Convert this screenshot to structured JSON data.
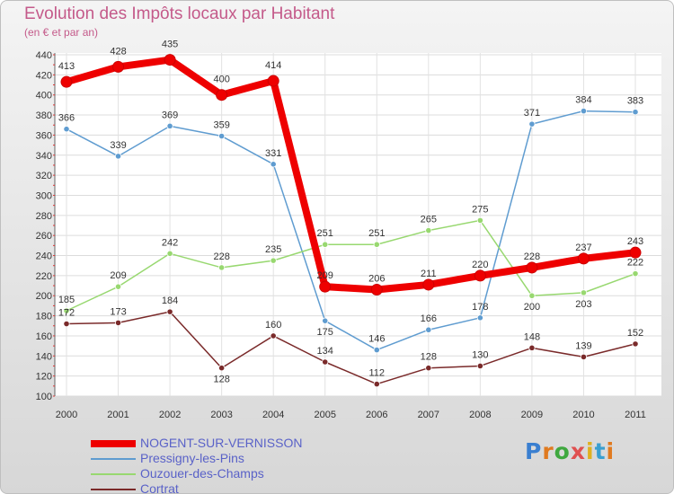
{
  "header": {
    "title": "Evolution des Impôts locaux par Habitant",
    "subtitle": "(en € et par an)"
  },
  "logo": {
    "letters": [
      "P",
      "r",
      "o",
      "x",
      "i",
      "t",
      "i"
    ],
    "colors": [
      "#3a7fd0",
      "#e07a1f",
      "#3fa83f",
      "#e05050",
      "#e0b020",
      "#3a9fd0",
      "#e07a1f"
    ]
  },
  "chart_data": {
    "type": "line",
    "title": "Evolution des Impôts locaux par Habitant",
    "subtitle": "(en € et par an)",
    "x": [
      "2000",
      "2001",
      "2002",
      "2003",
      "2004",
      "2005",
      "2006",
      "2007",
      "2008",
      "2009",
      "2010",
      "2011"
    ],
    "ylim": [
      100,
      440
    ],
    "yticks": [
      100,
      120,
      140,
      160,
      180,
      200,
      220,
      240,
      260,
      280,
      300,
      320,
      340,
      360,
      380,
      400,
      420,
      440
    ],
    "grid": true,
    "legend_position": "bottom-left",
    "series": [
      {
        "name": "NOGENT-SUR-VERNISSON",
        "color": "#ee0000",
        "emphasis": true,
        "values": [
          413,
          428,
          435,
          400,
          414,
          209,
          206,
          211,
          220,
          228,
          237,
          243
        ]
      },
      {
        "name": "Pressigny-les-Pins",
        "color": "#5f9cd0",
        "emphasis": false,
        "values": [
          366,
          339,
          369,
          359,
          331,
          175,
          146,
          166,
          178,
          371,
          384,
          383
        ]
      },
      {
        "name": "Ouzouer-des-Champs",
        "color": "#98d870",
        "emphasis": false,
        "values": [
          185,
          209,
          242,
          228,
          235,
          251,
          251,
          265,
          275,
          200,
          203,
          222
        ]
      },
      {
        "name": "Cortrat",
        "color": "#7a2a2a",
        "emphasis": false,
        "values": [
          172,
          173,
          184,
          128,
          160,
          134,
          112,
          128,
          130,
          148,
          139,
          152
        ]
      }
    ]
  }
}
